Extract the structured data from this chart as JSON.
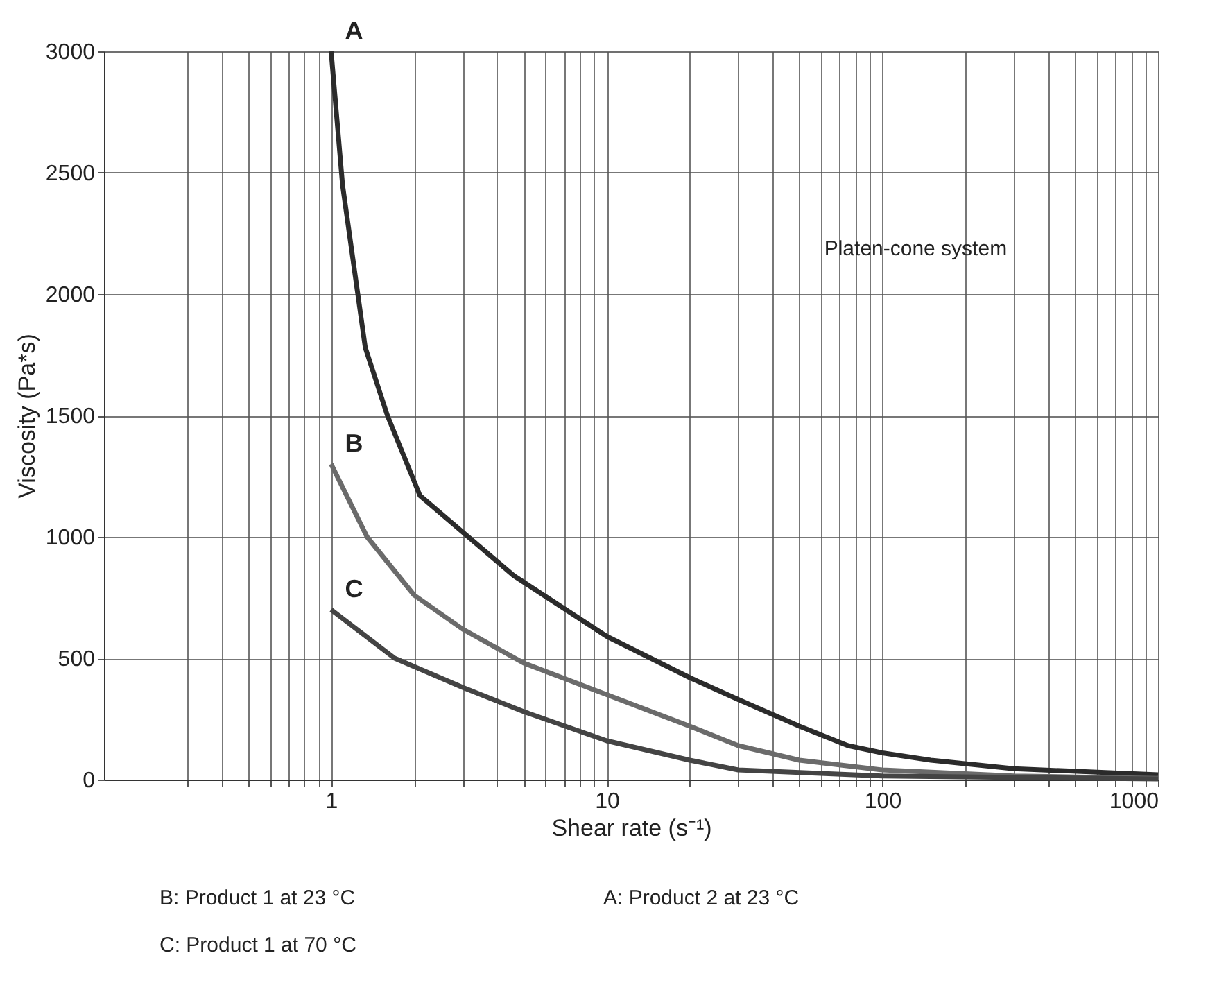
{
  "chart_data": {
    "type": "line",
    "xlabel": "Shear rate (s⁻¹)",
    "ylabel": "Viscosity (Pa*s)",
    "log": "x",
    "grid": true,
    "marker": "none",
    "line_style": "solid",
    "xlim": [
      0.15,
      1000
    ],
    "ylim": [
      0,
      3000
    ],
    "xticks": [
      {
        "value": 0.3,
        "label": null
      },
      {
        "value": 0.4,
        "label": null
      },
      {
        "value": 0.5,
        "label": null
      },
      {
        "value": 0.6,
        "label": null
      },
      {
        "value": 0.7,
        "label": null
      },
      {
        "value": 0.8,
        "label": null
      },
      {
        "value": 0.9,
        "label": null
      },
      1,
      {
        "value": 2,
        "label": null
      },
      {
        "value": 3,
        "label": null
      },
      {
        "value": 4,
        "label": null
      },
      {
        "value": 5,
        "label": null
      },
      {
        "value": 6,
        "label": null
      },
      {
        "value": 7,
        "label": null
      },
      {
        "value": 8,
        "label": null
      },
      {
        "value": 9,
        "label": null
      },
      10,
      {
        "value": 20,
        "label": null
      },
      {
        "value": 30,
        "label": null
      },
      {
        "value": 40,
        "label": null
      },
      {
        "value": 50,
        "label": null
      },
      {
        "value": 60,
        "label": null
      },
      {
        "value": 70,
        "label": null
      },
      {
        "value": 80,
        "label": null
      },
      {
        "value": 90,
        "label": null
      },
      100,
      {
        "value": 200,
        "label": null
      },
      {
        "value": 300,
        "label": null
      },
      {
        "value": 400,
        "label": null
      },
      {
        "value": 500,
        "label": null
      },
      {
        "value": 600,
        "label": null
      },
      {
        "value": 700,
        "label": null
      },
      {
        "value": 800,
        "label": null
      },
      {
        "value": 900,
        "label": null
      },
      1000
    ],
    "yticks": [
      0,
      500,
      1000,
      1500,
      2000,
      2500,
      3000
    ],
    "series": [
      {
        "name": "A",
        "color": "#2b2b2b",
        "x": [
          1,
          1.1,
          1.33,
          1.6,
          2.1,
          4.6,
          10,
          20,
          30,
          50,
          75,
          100,
          150,
          300,
          1000
        ],
        "values": [
          3000,
          2450,
          1780,
          1500,
          1170,
          840,
          590,
          420,
          330,
          220,
          140,
          110,
          80,
          45,
          20
        ]
      },
      {
        "name": "B",
        "color": "#6b6b6b",
        "x": [
          1,
          1.35,
          2,
          3,
          5,
          10,
          20,
          30,
          50,
          100,
          300,
          1000
        ],
        "values": [
          1300,
          1000,
          760,
          620,
          480,
          350,
          220,
          140,
          80,
          40,
          15,
          5
        ]
      },
      {
        "name": "C",
        "color": "#444444",
        "x": [
          1,
          1.7,
          3,
          5,
          10,
          20,
          30,
          100,
          1000
        ],
        "values": [
          700,
          500,
          380,
          280,
          160,
          80,
          40,
          15,
          3
        ]
      }
    ],
    "annotations": [
      "Platen-cone system",
      "B: Product 1 at 23 °C",
      "A: Product 2 at 23 °C",
      "C: Product 1 at 70 °C"
    ]
  }
}
